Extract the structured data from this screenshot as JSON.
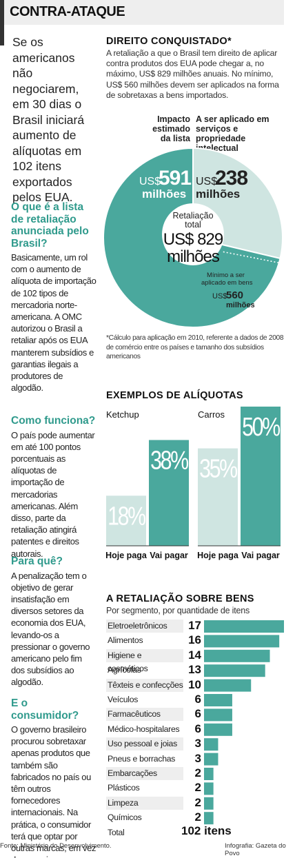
{
  "header": {
    "title": "CONTRA-ATAQUE"
  },
  "lead": "Se os americanos não negociarem, em 30 dias o Brasil iniciará aumento de alíquotas em 102 itens exportados pelos EUA.",
  "sidebar": [
    {
      "q": "O que é a lista de retaliação anunciada pelo Brasil?",
      "a": "Basicamente, um rol com o aumento de alíquota de importação de 102 tipos de mercadoria norte-americana. A OMC autorizou o Brasil a retaliar após os EUA manterem subsídios e garantias ilegais a produtores de algodão."
    },
    {
      "q": "Como funciona?",
      "a": "O país pode aumentar em até 100 pontos porcentuais as alíquotas de importação de mercadorias americanas. Além disso, parte da retaliação atingirá patentes e direitos autorais."
    },
    {
      "q": "Para quê?",
      "a": "A penalização tem o objetivo de gerar insatisfação em diversos setores da economia dos EUA, levando-os a pressionar o governo americano pelo fim dos subsídios ao algodão."
    },
    {
      "q": "E o consumidor?",
      "a": "O governo brasileiro procurou sobretaxar apenas produtos que também são fabricados no país ou têm outros fornecedores internacionais. Na prática, o consumidor terá que optar por outras marcas, em vez das americanas."
    }
  ],
  "direito": {
    "title": "DIREITO CONQUISTADO*",
    "text": "A retaliação a que o Brasil tem direito de aplicar contra produtos dos EUA pode chegar a, no máximo, US$ 829 milhões anuais. No mínimo, US$ 560 milhões devem ser aplicados na forma de sobretaxas a bens importados.",
    "label_impacto": "Impacto estimado da lista",
    "label_servicos": "A ser aplicado em serviços e propriedade intelectual",
    "footnote": "*Cálculo para aplicação em 2010, referente a dados de 2008 de comércio entre os países e tamanho dos subsídios americanos"
  },
  "chart_data": [
    {
      "type": "pie",
      "slices": [
        {
          "label": "US$ 591 milhões",
          "value": 591,
          "color": "#4aa89d"
        },
        {
          "label": "US$ 238 milhões",
          "value": 238,
          "color": "#cfe5e1"
        }
      ],
      "center_label": "Retaliação total",
      "center_value": "US$ 829 milhões",
      "annotation": {
        "label": "Mínimo a ser aplicado em bens",
        "value_text": "US$ 560 milhões",
        "value": 560
      }
    },
    {
      "type": "bar",
      "title": "EXEMPLOS DE ALÍQUOTAS",
      "categories": [
        "Hoje paga",
        "Vai pagar"
      ],
      "groups": [
        {
          "name": "Ketchup",
          "values": [
            18,
            38
          ],
          "labels": [
            "18%",
            "38%"
          ]
        },
        {
          "name": "Carros",
          "values": [
            35,
            50
          ],
          "labels": [
            "35%",
            "50%"
          ]
        }
      ],
      "colors": [
        "#cfe5e1",
        "#4aa89d"
      ],
      "ylim": [
        0,
        50
      ]
    },
    {
      "type": "bar",
      "orientation": "horizontal",
      "title": "A RETALIAÇÃO SOBRE BENS",
      "subtitle": "Por segmento, por quantidade de itens",
      "categories": [
        "Eletroeletrônicos",
        "Alimentos",
        "Higiene e cosméticos",
        "Agrícolas",
        "Têxteis e confecções",
        "Veículos",
        "Farmacêuticos",
        "Médico-hospitalares",
        "Uso pessoal e joias",
        "Pneus e borrachas",
        "Embarcações",
        "Plásticos",
        "Limpeza",
        "Químicos"
      ],
      "values": [
        17,
        16,
        14,
        13,
        10,
        6,
        6,
        6,
        3,
        3,
        2,
        2,
        2,
        2
      ],
      "total_label": "Total",
      "total_value": "102 itens",
      "color": "#4aa89d",
      "xlim": [
        0,
        17
      ]
    }
  ],
  "footer": {
    "source": "Fonte: Ministério do Desenvolvimento.",
    "credit": "Infografia: Gazeta do Povo"
  }
}
